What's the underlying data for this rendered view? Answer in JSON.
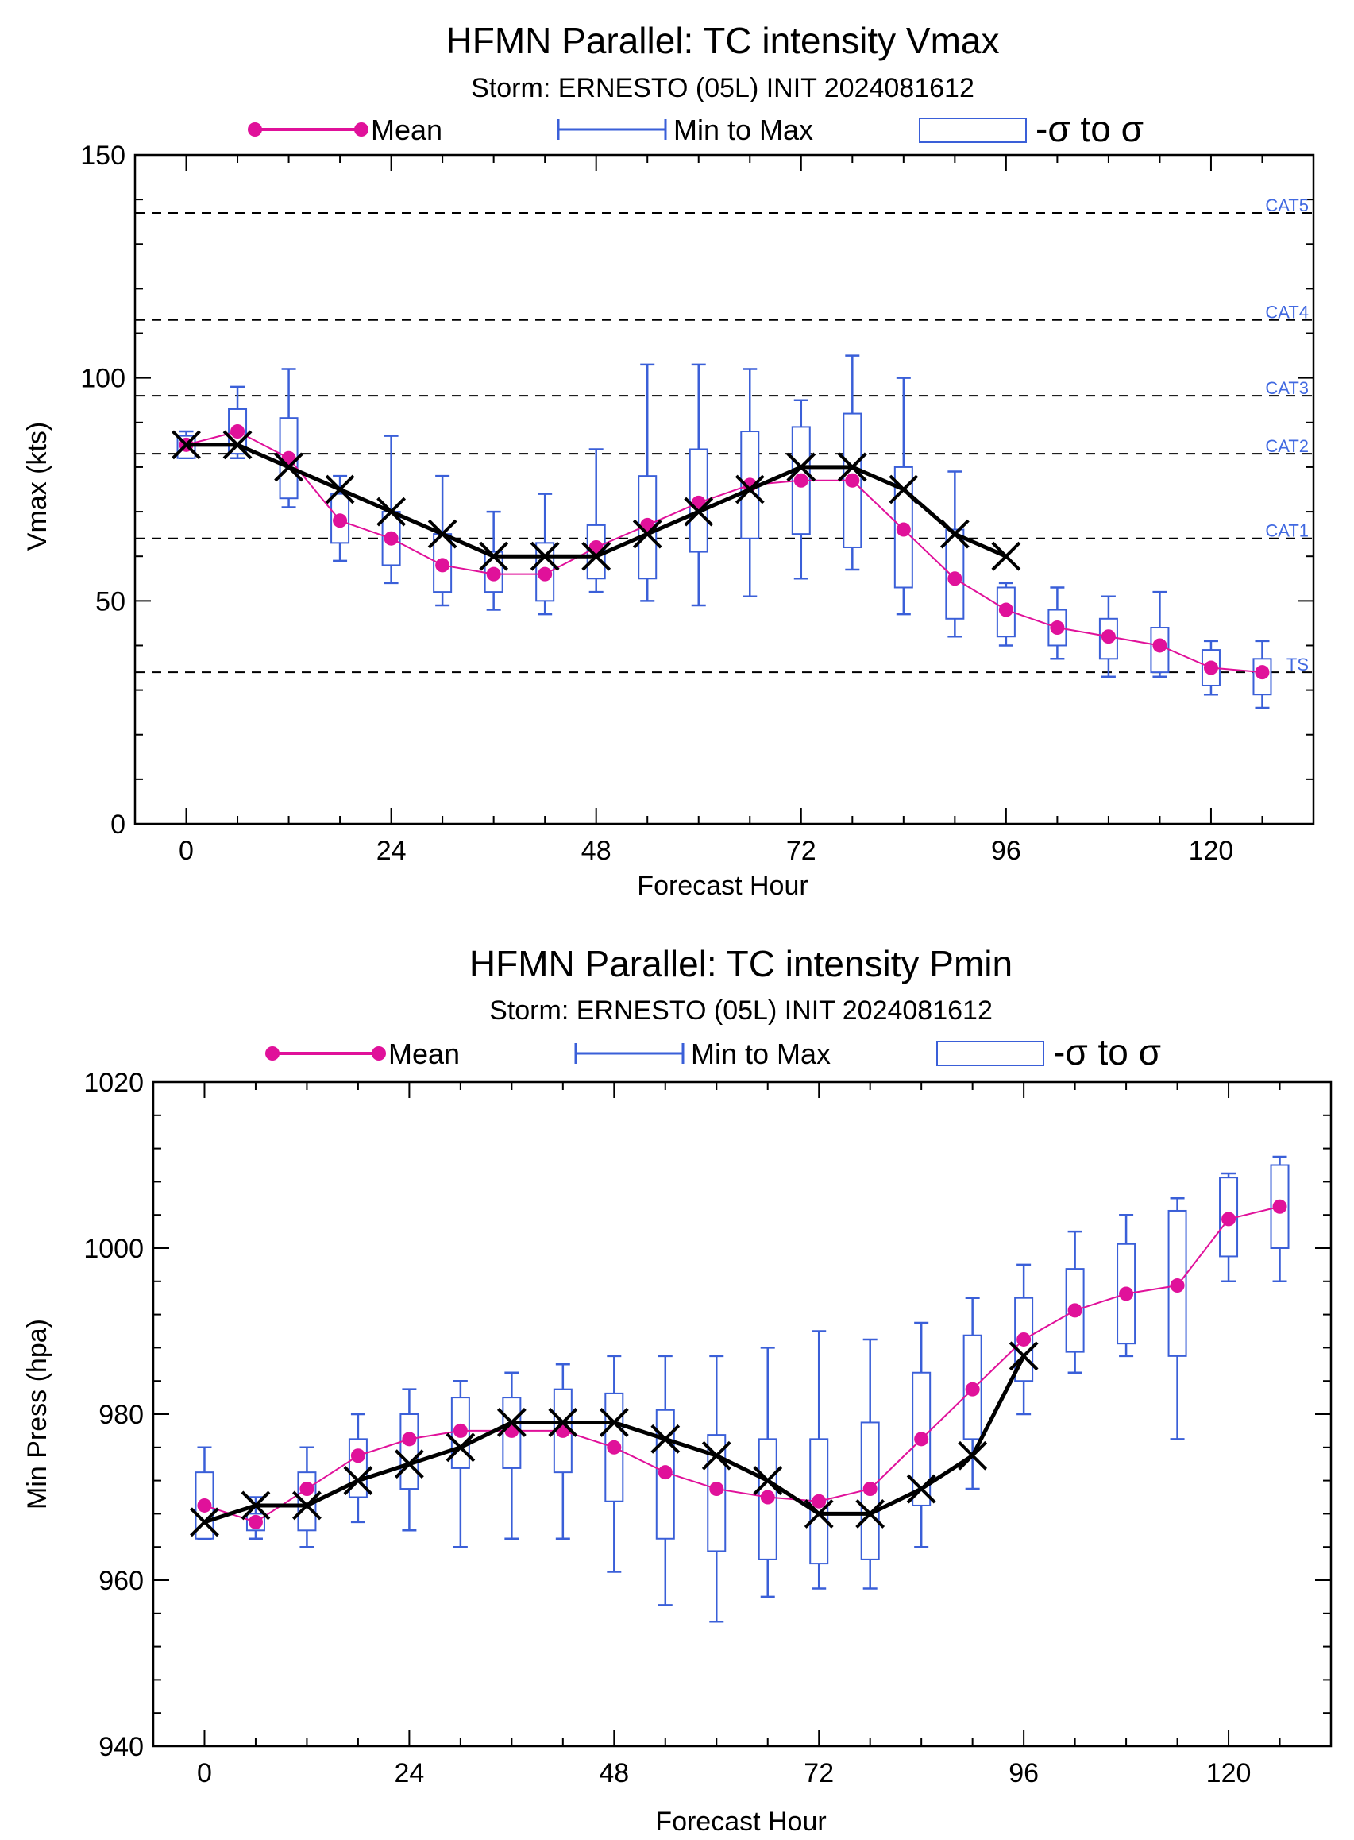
{
  "colors": {
    "mean": "#e0119a",
    "ensemble": "#3a5fd8",
    "official": "#000000",
    "threshold": "#000000",
    "cat_label": "#4169e1"
  },
  "chart_data": [
    {
      "type": "line",
      "title": "HFMN Parallel: TC intensity Vmax",
      "subtitle": "Storm: ERNESTO (05L) INIT 2024081612",
      "xlabel": "Forecast Hour",
      "ylabel": "Vmax (kts)",
      "xlim": [
        -6,
        132
      ],
      "ylim": [
        0,
        150
      ],
      "xticks": [
        0,
        24,
        48,
        72,
        96,
        120
      ],
      "yticks": [
        0,
        50,
        100,
        150
      ],
      "grid": false,
      "legend": {
        "placement": "top",
        "mean": "Mean",
        "range": "Min to Max",
        "sigma": "-σ to σ"
      },
      "thresholds": [
        {
          "label": "CAT5",
          "value": 137
        },
        {
          "label": "CAT4",
          "value": 113
        },
        {
          "label": "CAT3",
          "value": 96
        },
        {
          "label": "CAT2",
          "value": 83
        },
        {
          "label": "CAT1",
          "value": 64
        },
        {
          "label": "TS",
          "value": 34
        }
      ],
      "mean": {
        "x": [
          0,
          6,
          12,
          18,
          24,
          30,
          36,
          42,
          48,
          54,
          60,
          66,
          72,
          78,
          84,
          90,
          96,
          102,
          108,
          114,
          120,
          126
        ],
        "y": [
          85,
          88,
          82,
          68,
          64,
          58,
          56,
          56,
          62,
          67,
          72,
          76,
          77,
          77,
          66,
          55,
          48,
          44,
          42,
          40,
          35,
          34
        ]
      },
      "min_max": {
        "x": [
          0,
          6,
          12,
          18,
          24,
          30,
          36,
          42,
          48,
          54,
          60,
          66,
          72,
          78,
          84,
          90,
          96,
          102,
          108,
          114,
          120,
          126
        ],
        "min": [
          82,
          82,
          71,
          59,
          54,
          49,
          48,
          47,
          52,
          50,
          49,
          51,
          55,
          57,
          47,
          42,
          40,
          37,
          33,
          33,
          29,
          26
        ],
        "max": [
          88,
          98,
          102,
          78,
          87,
          78,
          70,
          74,
          84,
          103,
          103,
          102,
          95,
          105,
          100,
          79,
          54,
          53,
          51,
          52,
          41,
          41
        ]
      },
      "sigma": {
        "x": [
          0,
          6,
          12,
          18,
          24,
          30,
          36,
          42,
          48,
          54,
          60,
          66,
          72,
          78,
          84,
          90,
          96,
          102,
          108,
          114,
          120,
          126
        ],
        "low": [
          82,
          83,
          73,
          63,
          58,
          52,
          52,
          50,
          55,
          55,
          61,
          64,
          65,
          62,
          53,
          46,
          42,
          40,
          37,
          34,
          31,
          29
        ],
        "high": [
          87,
          93,
          91,
          74,
          70,
          65,
          61,
          63,
          67,
          78,
          84,
          88,
          89,
          92,
          80,
          66,
          53,
          48,
          46,
          44,
          39,
          37
        ]
      },
      "official": {
        "x": [
          0,
          6,
          12,
          18,
          24,
          30,
          36,
          42,
          48,
          54,
          60,
          66,
          72,
          78,
          84,
          90,
          96
        ],
        "y": [
          85,
          85,
          80,
          75,
          70,
          65,
          60,
          60,
          60,
          65,
          70,
          75,
          80,
          80,
          75,
          65,
          60
        ]
      }
    },
    {
      "type": "line",
      "title": "HFMN Parallel: TC intensity Pmin",
      "subtitle": "Storm: ERNESTO (05L) INIT 2024081612",
      "xlabel": "Forecast Hour",
      "ylabel": "Min Press (hpa)",
      "xlim": [
        -6,
        132
      ],
      "ylim": [
        940,
        1020
      ],
      "xticks": [
        0,
        24,
        48,
        72,
        96,
        120
      ],
      "yticks": [
        940,
        960,
        980,
        1000,
        1020
      ],
      "grid": false,
      "legend": {
        "placement": "top",
        "mean": "Mean",
        "range": "Min to Max",
        "sigma": "-σ to σ"
      },
      "thresholds": [],
      "mean": {
        "x": [
          0,
          6,
          12,
          18,
          24,
          30,
          36,
          42,
          48,
          54,
          60,
          66,
          72,
          78,
          84,
          90,
          96,
          102,
          108,
          114,
          120,
          126
        ],
        "y": [
          969,
          967,
          971,
          975,
          977,
          978,
          978,
          978,
          976,
          973,
          971,
          970,
          969.5,
          971,
          977,
          983,
          989,
          992.5,
          994.5,
          995.5,
          1003.5,
          1005
        ]
      },
      "min_max": {
        "x": [
          0,
          6,
          12,
          18,
          24,
          30,
          36,
          42,
          48,
          54,
          60,
          66,
          72,
          78,
          84,
          90,
          96,
          102,
          108,
          114,
          120,
          126
        ],
        "min": [
          965,
          965,
          964,
          967,
          966,
          964,
          965,
          965,
          961,
          957,
          955,
          958,
          959,
          959,
          964,
          971,
          980,
          985,
          987,
          977,
          996,
          996
        ],
        "max": [
          976,
          970,
          976,
          980,
          983,
          984,
          985,
          986,
          987,
          987,
          987,
          988,
          990,
          989,
          991,
          994,
          998,
          1002,
          1004,
          1006,
          1009,
          1011
        ]
      },
      "sigma": {
        "x": [
          0,
          6,
          12,
          18,
          24,
          30,
          36,
          42,
          48,
          54,
          60,
          66,
          72,
          78,
          84,
          90,
          96,
          102,
          108,
          114,
          120,
          126
        ],
        "low": [
          965,
          966,
          966,
          970,
          971,
          973.5,
          973.5,
          973,
          969.5,
          965,
          963.5,
          962.5,
          962,
          962.5,
          969,
          977,
          984,
          987.5,
          988.5,
          987,
          999,
          1000
        ],
        "high": [
          973,
          968,
          973,
          977,
          980,
          982,
          982,
          983,
          982.5,
          980.5,
          977.5,
          977,
          977,
          979,
          985,
          989.5,
          994,
          997.5,
          1000.5,
          1004.5,
          1008.5,
          1010
        ]
      },
      "official": {
        "x": [
          0,
          6,
          12,
          18,
          24,
          30,
          36,
          42,
          48,
          54,
          60,
          66,
          72,
          78,
          84,
          90,
          96
        ],
        "y": [
          967,
          969,
          969,
          972,
          974,
          976,
          979,
          979,
          979,
          977,
          975,
          972,
          968,
          968,
          971,
          975,
          987
        ]
      }
    }
  ]
}
